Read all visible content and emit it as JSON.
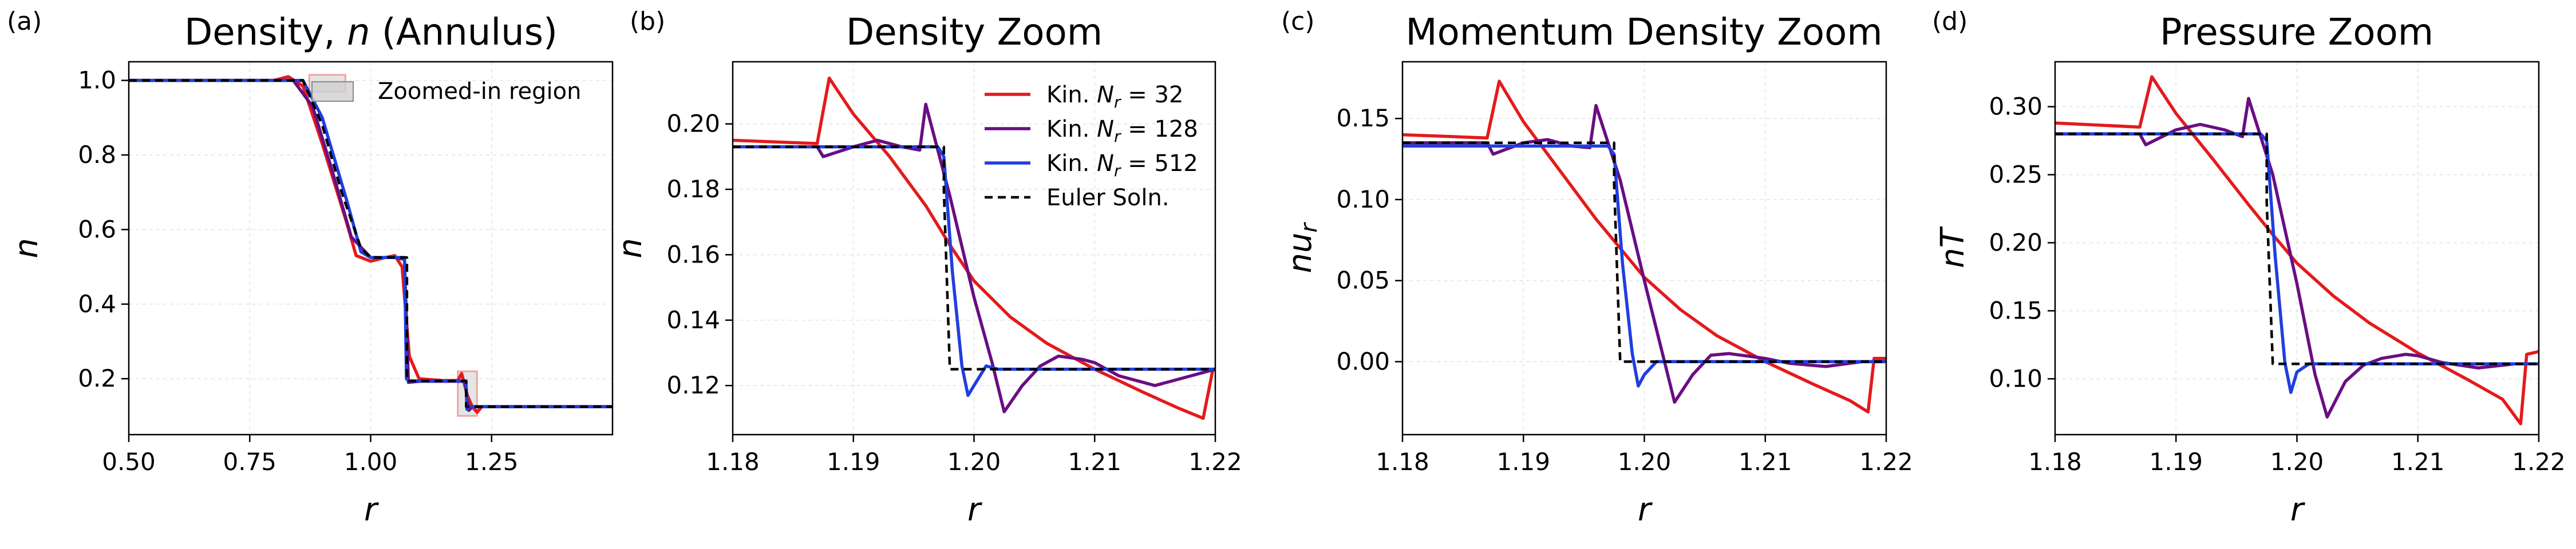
{
  "chart_data": [
    {
      "panel": "(a)",
      "type": "line",
      "title": "Density, n (Annulus)",
      "xlabel": "r",
      "ylabel": "n",
      "xlim": [
        0.5,
        1.5
      ],
      "ylim": [
        0.05,
        1.05
      ],
      "xticks": [
        0.5,
        0.75,
        1.0,
        1.25
      ],
      "xtick_labels": [
        "0.50",
        "0.75",
        "1.00",
        "1.25"
      ],
      "yticks": [
        0.2,
        0.4,
        0.6,
        0.8,
        1.0
      ],
      "ytick_labels": [
        "0.2",
        "0.4",
        "0.6",
        "0.8",
        "1.0"
      ],
      "grid": true,
      "legend": [
        {
          "label": "Zoomed-in region",
          "color": "#d0d0d0"
        }
      ],
      "zoom_regions": [
        {
          "x": [
            0.873,
            0.948
          ],
          "y": [
            0.97,
            1.015
          ]
        },
        {
          "x": [
            1.18,
            1.22
          ],
          "y": [
            0.1,
            0.22
          ]
        }
      ],
      "series": [
        {
          "name": "Kin. N_r = 32",
          "color": "#e41a1c",
          "x": [
            0.5,
            0.8,
            0.83,
            0.86,
            0.9,
            0.95,
            0.97,
            1.0,
            1.03,
            1.05,
            1.065,
            1.08,
            1.1,
            1.15,
            1.18,
            1.188,
            1.2,
            1.21,
            1.22,
            1.23,
            1.5
          ],
          "y": [
            1.0,
            1.0,
            1.01,
            0.985,
            0.83,
            0.62,
            0.53,
            0.515,
            0.525,
            0.53,
            0.5,
            0.26,
            0.2,
            0.195,
            0.195,
            0.214,
            0.155,
            0.125,
            0.11,
            0.125,
            0.125
          ]
        },
        {
          "name": "Kin. N_r = 128",
          "color": "#6a0d83",
          "x": [
            0.5,
            0.84,
            0.88,
            0.92,
            0.96,
            1.0,
            1.05,
            1.07,
            1.078,
            1.1,
            1.15,
            1.195,
            1.2,
            1.203,
            1.21,
            1.5
          ],
          "y": [
            1.0,
            1.0,
            0.93,
            0.76,
            0.58,
            0.525,
            0.525,
            0.52,
            0.19,
            0.193,
            0.193,
            0.193,
            0.14,
            0.115,
            0.125,
            0.125
          ]
        },
        {
          "name": "Kin. N_r = 512",
          "color": "#1f3fe0",
          "x": [
            0.5,
            0.86,
            0.9,
            0.95,
            0.98,
            1.0,
            1.07,
            1.074,
            1.078,
            1.197,
            1.199,
            1.2,
            1.205,
            1.5
          ],
          "y": [
            1.0,
            1.0,
            0.9,
            0.68,
            0.54,
            0.525,
            0.525,
            0.2,
            0.194,
            0.194,
            0.118,
            0.125,
            0.125,
            0.125
          ]
        },
        {
          "name": "Euler Soln.",
          "color": "#000000",
          "dash": true,
          "x": [
            0.5,
            0.86,
            0.9,
            0.94,
            0.98,
            1.0,
            1.075,
            1.075,
            1.1975,
            1.1975,
            1.5
          ],
          "y": [
            1.0,
            1.0,
            0.88,
            0.7,
            0.55,
            0.525,
            0.525,
            0.194,
            0.194,
            0.125,
            0.125
          ]
        }
      ]
    },
    {
      "panel": "(b)",
      "type": "line",
      "title": "Density Zoom",
      "xlabel": "r",
      "ylabel": "n",
      "xlim": [
        1.18,
        1.22
      ],
      "ylim": [
        0.105,
        0.219
      ],
      "xticks": [
        1.18,
        1.19,
        1.2,
        1.21,
        1.22
      ],
      "xtick_labels": [
        "1.18",
        "1.19",
        "1.20",
        "1.21",
        "1.22"
      ],
      "yticks": [
        0.12,
        0.14,
        0.16,
        0.18,
        0.2
      ],
      "ytick_labels": [
        "0.12",
        "0.14",
        "0.16",
        "0.18",
        "0.20"
      ],
      "grid": true,
      "legend": [
        {
          "label_prefix": "Kin. ",
          "label_var": "N",
          "label_sub": "r",
          "label_suffix": " = 32",
          "color": "#e41a1c"
        },
        {
          "label_prefix": "Kin. ",
          "label_var": "N",
          "label_sub": "r",
          "label_suffix": " = 128",
          "color": "#6a0d83"
        },
        {
          "label_prefix": "Kin. ",
          "label_var": "N",
          "label_sub": "r",
          "label_suffix": " = 512",
          "color": "#1f3fe0"
        },
        {
          "label_prefix": "Euler Soln.",
          "label_var": "",
          "label_sub": "",
          "label_suffix": "",
          "color": "#000000",
          "dash": true
        }
      ],
      "series": [
        {
          "name": "Kin. N_r = 32",
          "color": "#e41a1c",
          "x": [
            1.18,
            1.187,
            1.188,
            1.19,
            1.193,
            1.196,
            1.198,
            1.2,
            1.203,
            1.206,
            1.21,
            1.214,
            1.217,
            1.219,
            1.2198,
            1.22
          ],
          "y": [
            0.195,
            0.194,
            0.214,
            0.203,
            0.19,
            0.175,
            0.163,
            0.152,
            0.141,
            0.133,
            0.125,
            0.118,
            0.113,
            0.11,
            0.125,
            0.125
          ]
        },
        {
          "name": "Kin. N_r = 128",
          "color": "#6a0d83",
          "x": [
            1.18,
            1.187,
            1.1875,
            1.19,
            1.192,
            1.194,
            1.1955,
            1.196,
            1.198,
            1.2,
            1.2015,
            1.2025,
            1.204,
            1.2055,
            1.207,
            1.209,
            1.21,
            1.212,
            1.215,
            1.218,
            1.22
          ],
          "y": [
            0.193,
            0.193,
            0.19,
            0.193,
            0.195,
            0.193,
            0.192,
            0.206,
            0.178,
            0.147,
            0.127,
            0.112,
            0.12,
            0.126,
            0.129,
            0.128,
            0.127,
            0.123,
            0.12,
            0.123,
            0.125
          ]
        },
        {
          "name": "Kin. N_r = 512",
          "color": "#1f3fe0",
          "x": [
            1.18,
            1.193,
            1.195,
            1.1965,
            1.197,
            1.1975,
            1.1982,
            1.199,
            1.1995,
            1.2,
            1.201,
            1.202,
            1.204,
            1.22
          ],
          "y": [
            0.193,
            0.193,
            0.193,
            0.193,
            0.193,
            0.19,
            0.155,
            0.126,
            0.117,
            0.12,
            0.126,
            0.125,
            0.125,
            0.125
          ]
        },
        {
          "name": "Euler Soln.",
          "color": "#000000",
          "dash": true,
          "x": [
            1.18,
            1.1975,
            1.1975,
            1.198,
            1.22
          ],
          "y": [
            0.193,
            0.193,
            0.18,
            0.125,
            0.125
          ]
        }
      ]
    },
    {
      "panel": "(c)",
      "type": "line",
      "title": "Momentum Density Zoom",
      "xlabel": "r",
      "ylabel": "nu_r",
      "xlim": [
        1.18,
        1.22
      ],
      "ylim": [
        -0.045,
        0.185
      ],
      "xticks": [
        1.18,
        1.19,
        1.2,
        1.21,
        1.22
      ],
      "xtick_labels": [
        "1.18",
        "1.19",
        "1.20",
        "1.21",
        "1.22"
      ],
      "yticks": [
        0.0,
        0.05,
        0.1,
        0.15
      ],
      "ytick_labels": [
        "0.00",
        "0.05",
        "0.10",
        "0.15"
      ],
      "grid": true,
      "series": [
        {
          "name": "Kin. N_r = 32",
          "color": "#e41a1c",
          "x": [
            1.18,
            1.187,
            1.188,
            1.19,
            1.193,
            1.196,
            1.198,
            1.2,
            1.203,
            1.206,
            1.21,
            1.214,
            1.217,
            1.2185,
            1.219,
            1.22
          ],
          "y": [
            0.14,
            0.138,
            0.173,
            0.148,
            0.118,
            0.088,
            0.07,
            0.052,
            0.032,
            0.016,
            0.0,
            -0.014,
            -0.024,
            -0.031,
            0.002,
            0.002
          ]
        },
        {
          "name": "Kin. N_r = 128",
          "color": "#6a0d83",
          "x": [
            1.18,
            1.187,
            1.1875,
            1.19,
            1.192,
            1.194,
            1.1955,
            1.196,
            1.198,
            1.2,
            1.2015,
            1.2025,
            1.204,
            1.2055,
            1.207,
            1.209,
            1.21,
            1.212,
            1.215,
            1.218,
            1.22
          ],
          "y": [
            0.135,
            0.135,
            0.128,
            0.135,
            0.137,
            0.133,
            0.132,
            0.158,
            0.112,
            0.05,
            0.005,
            -0.025,
            -0.008,
            0.004,
            0.005,
            0.003,
            0.002,
            -0.001,
            -0.003,
            0.0,
            0.0
          ]
        },
        {
          "name": "Kin. N_r = 512",
          "color": "#1f3fe0",
          "x": [
            1.18,
            1.193,
            1.195,
            1.1965,
            1.197,
            1.1975,
            1.1982,
            1.199,
            1.1995,
            1.2,
            1.201,
            1.202,
            1.204,
            1.22
          ],
          "y": [
            0.133,
            0.133,
            0.133,
            0.133,
            0.133,
            0.128,
            0.06,
            0.005,
            -0.015,
            -0.008,
            0.0,
            0.0,
            0.0,
            0.0
          ]
        },
        {
          "name": "Euler Soln.",
          "color": "#000000",
          "dash": true,
          "x": [
            1.18,
            1.1975,
            1.1975,
            1.198,
            1.22
          ],
          "y": [
            0.135,
            0.135,
            0.11,
            0.0,
            0.0
          ]
        }
      ]
    },
    {
      "panel": "(d)",
      "type": "line",
      "title": "Pressure Zoom",
      "xlabel": "r",
      "ylabel": "nT",
      "xlim": [
        1.18,
        1.22
      ],
      "ylim": [
        0.059,
        0.333
      ],
      "xticks": [
        1.18,
        1.19,
        1.2,
        1.21,
        1.22
      ],
      "xtick_labels": [
        "1.18",
        "1.19",
        "1.20",
        "1.21",
        "1.22"
      ],
      "yticks": [
        0.1,
        0.15,
        0.2,
        0.25,
        0.3
      ],
      "ytick_labels": [
        "0.10",
        "0.15",
        "0.20",
        "0.25",
        "0.30"
      ],
      "grid": true,
      "series": [
        {
          "name": "Kin. N_r = 32",
          "color": "#e41a1c",
          "x": [
            1.18,
            1.187,
            1.188,
            1.19,
            1.193,
            1.196,
            1.198,
            1.2,
            1.203,
            1.206,
            1.21,
            1.214,
            1.217,
            1.2185,
            1.219,
            1.22
          ],
          "y": [
            0.288,
            0.285,
            0.322,
            0.295,
            0.262,
            0.228,
            0.206,
            0.185,
            0.161,
            0.141,
            0.119,
            0.1,
            0.085,
            0.067,
            0.118,
            0.12
          ]
        },
        {
          "name": "Kin. N_r = 128",
          "color": "#6a0d83",
          "x": [
            1.18,
            1.187,
            1.1875,
            1.19,
            1.192,
            1.194,
            1.1955,
            1.196,
            1.198,
            1.2,
            1.2015,
            1.2025,
            1.204,
            1.2055,
            1.207,
            1.209,
            1.21,
            1.212,
            1.215,
            1.218,
            1.22
          ],
          "y": [
            0.28,
            0.28,
            0.272,
            0.283,
            0.287,
            0.283,
            0.278,
            0.306,
            0.25,
            0.17,
            0.103,
            0.072,
            0.098,
            0.11,
            0.115,
            0.118,
            0.117,
            0.112,
            0.108,
            0.111,
            0.111
          ]
        },
        {
          "name": "Kin. N_r = 512",
          "color": "#1f3fe0",
          "x": [
            1.18,
            1.193,
            1.195,
            1.1965,
            1.197,
            1.1975,
            1.1982,
            1.199,
            1.1995,
            1.2,
            1.201,
            1.202,
            1.204,
            1.22
          ],
          "y": [
            0.28,
            0.28,
            0.28,
            0.28,
            0.28,
            0.275,
            0.19,
            0.112,
            0.09,
            0.105,
            0.111,
            0.111,
            0.111,
            0.111
          ]
        },
        {
          "name": "Euler Soln.",
          "color": "#000000",
          "dash": true,
          "x": [
            1.18,
            1.1975,
            1.1975,
            1.198,
            1.22
          ],
          "y": [
            0.28,
            0.28,
            0.23,
            0.111,
            0.111
          ]
        }
      ]
    }
  ]
}
